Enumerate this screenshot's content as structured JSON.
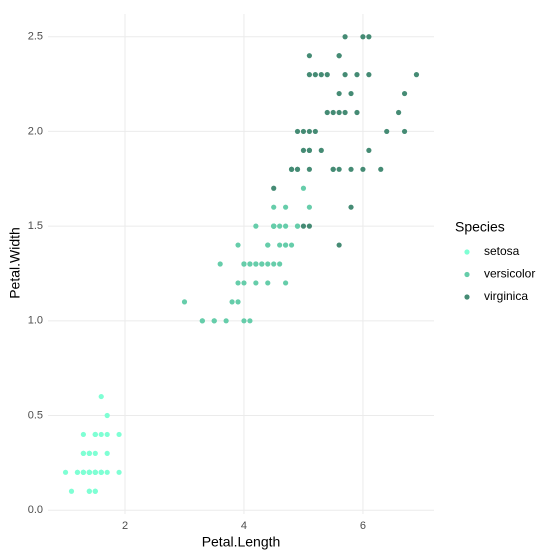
{
  "chart_data": {
    "type": "scatter",
    "x_label": "Petal.Length",
    "y_label": "Petal.Width",
    "legend_title": "Species",
    "legend": "right",
    "grid": true,
    "xlim": [
      0.705,
      7.195
    ],
    "xticks": [
      2,
      4,
      6
    ],
    "ylim": [
      -0.02,
      2.62
    ],
    "yticks": [
      {
        "value": 0,
        "label": "0.0"
      },
      0.5,
      {
        "value": 1,
        "label": "1.0"
      },
      1.5,
      {
        "value": 2,
        "label": "2.0"
      },
      2.5
    ],
    "series": [
      {
        "name": "setosa",
        "color": "#7fffd4",
        "x": [
          1.4,
          1.4,
          1.3,
          1.5,
          1.4,
          1.7,
          1.4,
          1.5,
          1.4,
          1.5,
          1.5,
          1.6,
          1.4,
          1.1,
          1.2,
          1.5,
          1.3,
          1.4,
          1.7,
          1.5,
          1.7,
          1.5,
          1.0,
          1.7,
          1.9,
          1.6,
          1.6,
          1.5,
          1.4,
          1.6,
          1.6,
          1.5,
          1.5,
          1.4,
          1.5,
          1.2,
          1.3,
          1.4,
          1.3,
          1.5,
          1.3,
          1.3,
          1.3,
          1.6,
          1.9,
          1.4,
          1.6,
          1.4,
          1.5,
          1.4
        ],
        "values": [
          0.2,
          0.2,
          0.2,
          0.2,
          0.2,
          0.4,
          0.3,
          0.2,
          0.2,
          0.1,
          0.2,
          0.2,
          0.1,
          0.1,
          0.2,
          0.4,
          0.4,
          0.3,
          0.3,
          0.3,
          0.2,
          0.4,
          0.2,
          0.5,
          0.2,
          0.2,
          0.4,
          0.2,
          0.2,
          0.2,
          0.2,
          0.4,
          0.1,
          0.2,
          0.2,
          0.2,
          0.2,
          0.1,
          0.2,
          0.2,
          0.3,
          0.3,
          0.2,
          0.6,
          0.4,
          0.3,
          0.2,
          0.2,
          0.2,
          0.2
        ]
      },
      {
        "name": "versicolor",
        "color": "#66cdaa",
        "x": [
          4.7,
          4.5,
          4.9,
          4.0,
          4.6,
          4.5,
          4.7,
          3.3,
          4.6,
          3.9,
          3.5,
          4.2,
          4.0,
          4.7,
          3.6,
          4.4,
          4.5,
          4.1,
          4.5,
          3.9,
          4.8,
          4.0,
          4.9,
          4.7,
          4.3,
          4.4,
          4.8,
          5.0,
          4.5,
          3.5,
          3.8,
          3.7,
          3.9,
          5.1,
          4.5,
          4.5,
          4.7,
          4.4,
          4.1,
          4.0,
          4.4,
          4.6,
          4.0,
          3.3,
          4.2,
          4.2,
          4.2,
          4.3,
          3.0,
          4.1
        ],
        "values": [
          1.4,
          1.5,
          1.5,
          1.3,
          1.5,
          1.3,
          1.6,
          1.0,
          1.3,
          1.4,
          1.0,
          1.5,
          1.0,
          1.4,
          1.3,
          1.4,
          1.5,
          1.0,
          1.5,
          1.1,
          1.8,
          1.3,
          1.5,
          1.2,
          1.3,
          1.4,
          1.4,
          1.7,
          1.5,
          1.0,
          1.1,
          1.0,
          1.2,
          1.6,
          1.5,
          1.6,
          1.5,
          1.3,
          1.3,
          1.3,
          1.2,
          1.4,
          1.2,
          1.0,
          1.3,
          1.2,
          1.3,
          1.3,
          1.1,
          1.3
        ]
      },
      {
        "name": "virginica",
        "color": "#458b74",
        "x": [
          6.0,
          5.1,
          5.9,
          5.6,
          5.8,
          6.6,
          4.5,
          6.3,
          5.8,
          6.1,
          5.1,
          5.3,
          5.5,
          5.0,
          5.1,
          5.3,
          5.5,
          6.7,
          6.9,
          5.0,
          5.7,
          4.9,
          6.7,
          4.9,
          5.7,
          6.0,
          4.8,
          4.9,
          5.6,
          5.8,
          6.1,
          6.4,
          5.6,
          5.1,
          5.6,
          6.1,
          5.6,
          5.5,
          4.8,
          5.4,
          5.6,
          5.1,
          5.1,
          5.9,
          5.7,
          5.2,
          5.0,
          5.2,
          5.4,
          5.1
        ],
        "values": [
          2.5,
          1.9,
          2.1,
          1.8,
          2.2,
          2.1,
          1.7,
          1.8,
          1.8,
          2.5,
          2.0,
          1.9,
          2.1,
          2.0,
          2.4,
          2.3,
          1.8,
          2.2,
          2.3,
          1.5,
          2.3,
          2.0,
          2.0,
          1.8,
          2.1,
          1.8,
          1.8,
          1.8,
          2.1,
          1.6,
          1.9,
          2.0,
          2.2,
          1.5,
          1.4,
          2.3,
          2.4,
          1.8,
          1.8,
          2.1,
          2.4,
          2.3,
          1.9,
          2.3,
          2.5,
          2.3,
          1.9,
          2.0,
          2.3,
          1.8
        ]
      }
    ]
  }
}
